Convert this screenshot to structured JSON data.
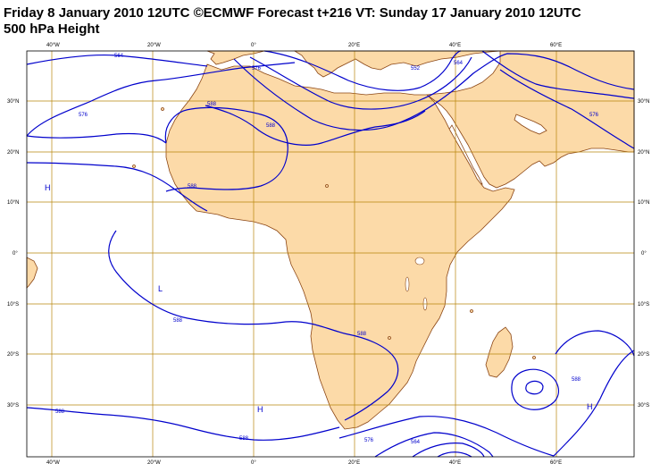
{
  "title": {
    "line1": "Friday 8 January 2010 12UTC ©ECMWF Forecast t+216 VT: Sunday 17 January 2010 12UTC",
    "line2": "500 hPa Height"
  },
  "colors": {
    "land": "#fcdaa8",
    "coast": "#8b4513",
    "contour": "#0000cc",
    "grid": "#b8860b",
    "ocean": "#ffffff"
  },
  "map": {
    "x_ticks": [
      "40°W",
      "20°W",
      "0°",
      "20°E",
      "40°E",
      "60°E"
    ],
    "y_ticks": [
      "30°N",
      "20°N",
      "10°N",
      "0°",
      "10°S",
      "20°S",
      "30°S"
    ],
    "contour_labels": {
      "c564_nw": "564",
      "c576_nw": "576",
      "c576_n": "576",
      "c588_n": "588",
      "c588_sahara": "588",
      "c588_w": "588",
      "c552_ne": "552",
      "c564_ne": "564",
      "c576_e": "576",
      "c588_s_atl": "588",
      "c588_madag": "588",
      "c588_sw": "588",
      "c588_s": "588",
      "c576_s": "576",
      "c564_s": "564",
      "c588_se": "588"
    },
    "pressure_centers": [
      {
        "name": "high-w-atlantic",
        "label": "H"
      },
      {
        "name": "low-s-atlantic",
        "label": "L"
      },
      {
        "name": "high-s-atlantic",
        "label": "H"
      },
      {
        "name": "high-s-indian",
        "label": "H"
      }
    ]
  }
}
